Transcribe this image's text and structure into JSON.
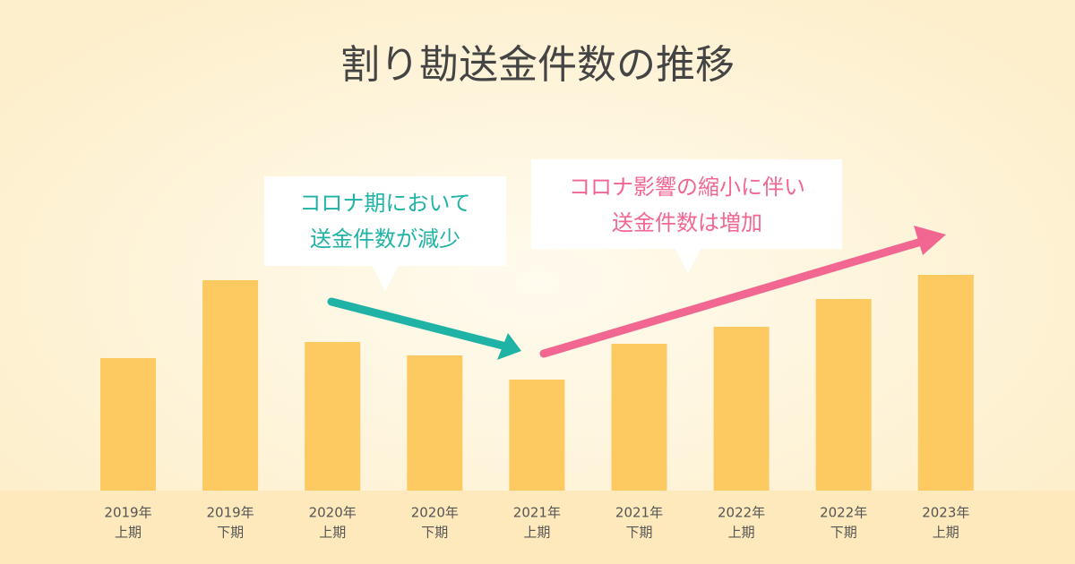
{
  "chart_data": {
    "type": "bar",
    "title": "割り勘送金件数の推移",
    "categories": [
      [
        "2019年",
        "上期"
      ],
      [
        "2019年",
        "下期"
      ],
      [
        "2020年",
        "上期"
      ],
      [
        "2020年",
        "下期"
      ],
      [
        "2021年",
        "上期"
      ],
      [
        "2021年",
        "下期"
      ],
      [
        "2022年",
        "上期"
      ],
      [
        "2022年",
        "下期"
      ],
      [
        "2023年",
        "上期"
      ]
    ],
    "values": [
      148,
      235,
      166,
      151,
      124,
      164,
      183,
      214,
      241
    ],
    "color": "#fdc961",
    "annotations": [
      {
        "lines": [
          "コロナ期において",
          "送金件数が減少"
        ],
        "color": "#1fb3a5"
      },
      {
        "lines": [
          "コロナ影響の縮小に伴い",
          "送金件数は増加"
        ],
        "color": "#f26792"
      }
    ]
  }
}
